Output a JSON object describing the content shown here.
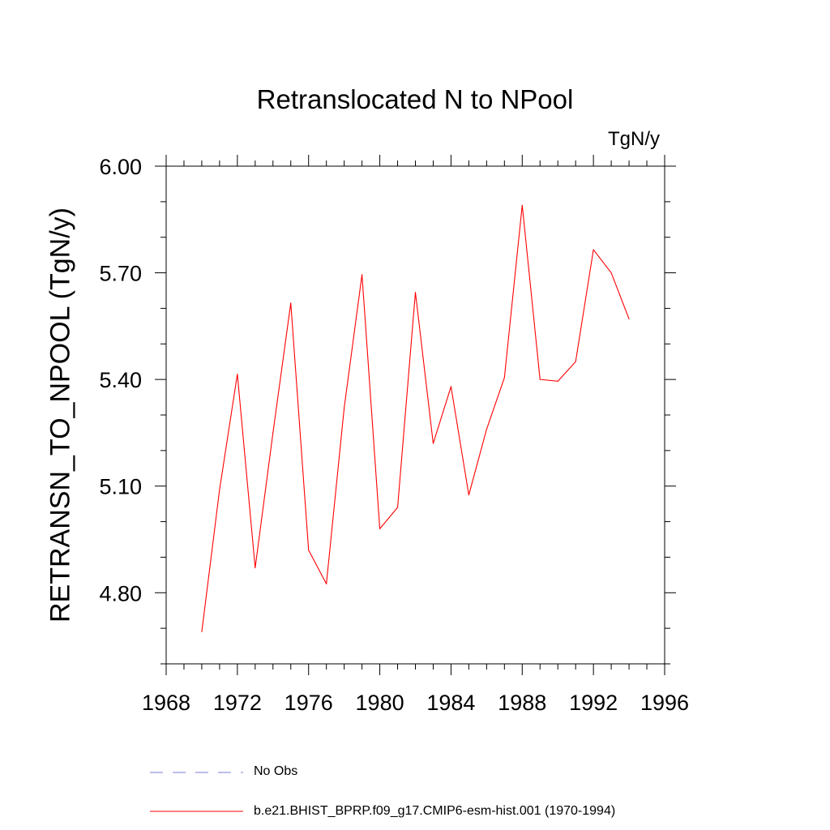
{
  "chart_data": {
    "type": "line",
    "title": "Retranslocated N to NPool",
    "units": "TgN/y",
    "ylabel": "RETRANSN_TO_NPOOL  (TgN/y)",
    "xlabel": "",
    "xlim": [
      1968,
      1996
    ],
    "ylim": [
      4.6,
      6.0
    ],
    "x_ticks": [
      1968,
      1972,
      1976,
      1980,
      1984,
      1988,
      1992,
      1996
    ],
    "y_ticks": [
      4.8,
      5.1,
      5.4,
      5.7,
      6.0
    ],
    "y_tick_labels": [
      "4.80",
      "5.10",
      "5.40",
      "5.70",
      "6.00"
    ],
    "grid": false,
    "series": [
      {
        "name": "b.e21.BHIST_BPRP.f09_g17.CMIP6-esm-hist.001 (1970-1994)",
        "color": "#ff0000",
        "style": "solid",
        "x": [
          1970,
          1971,
          1972,
          1973,
          1974,
          1975,
          1976,
          1977,
          1978,
          1979,
          1980,
          1981,
          1982,
          1983,
          1984,
          1985,
          1986,
          1987,
          1988,
          1989,
          1990,
          1991,
          1992,
          1993,
          1994
        ],
        "values": [
          4.69,
          5.09,
          5.415,
          4.87,
          5.25,
          5.615,
          4.92,
          4.825,
          5.32,
          5.695,
          4.98,
          5.04,
          5.645,
          5.22,
          5.38,
          5.075,
          5.26,
          5.405,
          5.89,
          5.4,
          5.395,
          5.45,
          5.765,
          5.7,
          5.57
        ]
      }
    ],
    "legend": [
      {
        "label": "No Obs",
        "color": "#7b7bd6",
        "style": "dashed"
      },
      {
        "label": "b.e21.BHIST_BPRP.f09_g17.CMIP6-esm-hist.001 (1970-1994)",
        "color": "#ff0000",
        "style": "solid"
      }
    ]
  }
}
